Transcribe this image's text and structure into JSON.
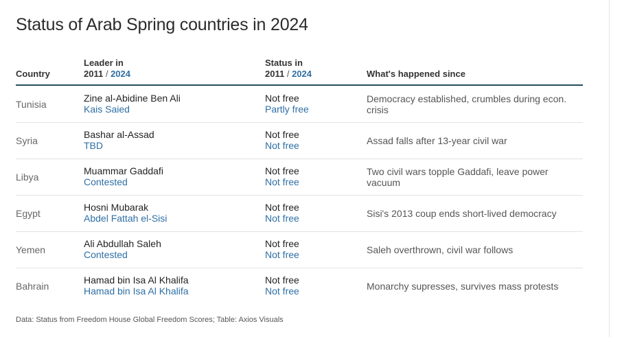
{
  "title": "Status of Arab Spring countries in 2024",
  "headers": {
    "country": "Country",
    "leader": "Leader in",
    "status": "Status in",
    "year_then": "2011",
    "slash": "/",
    "year_now": "2024",
    "since": "What's happened since"
  },
  "chart_data": {
    "type": "table",
    "title": "Status of Arab Spring countries in 2024",
    "columns": [
      "Country",
      "Leader in 2011 / 2024",
      "Status in 2011 / 2024",
      "What's happened since"
    ],
    "rows": [
      {
        "country": "Tunisia",
        "leader_2011": "Zine al-Abidine Ben Ali",
        "leader_2024": "Kais Saied",
        "status_2011": "Not free",
        "status_2024": "Partly free",
        "since": "Democracy established, crumbles during econ. crisis"
      },
      {
        "country": "Syria",
        "leader_2011": "Bashar al-Assad",
        "leader_2024": "TBD",
        "status_2011": "Not free",
        "status_2024": "Not free",
        "since": "Assad falls after 13-year civil war"
      },
      {
        "country": "Libya",
        "leader_2011": "Muammar Gaddafi",
        "leader_2024": "Contested",
        "status_2011": "Not free",
        "status_2024": "Not free",
        "since": "Two civil wars topple Gaddafi, leave power vacuum"
      },
      {
        "country": "Egypt",
        "leader_2011": "Hosni Mubarak",
        "leader_2024": "Abdel Fattah el-Sisi",
        "status_2011": "Not free",
        "status_2024": "Not free",
        "since": "Sisi's 2013 coup ends short-lived democracy"
      },
      {
        "country": "Yemen",
        "leader_2011": "Ali Abdullah Saleh",
        "leader_2024": "Contested",
        "status_2011": "Not free",
        "status_2024": "Not free",
        "since": "Saleh overthrown, civil war follows"
      },
      {
        "country": "Bahrain",
        "leader_2011": "Hamad bin Isa Al Khalifa",
        "leader_2024": "Hamad bin Isa Al Khalifa",
        "status_2011": "Not free",
        "status_2024": "Not free",
        "since": "Monarchy supresses, survives mass protests"
      }
    ]
  },
  "footer": "Data: Status from Freedom House Global Freedom Scores; Table: Axios Visuals",
  "colors": {
    "accent_2024": "#2e6fa4",
    "header_rule": "#244c5e"
  }
}
